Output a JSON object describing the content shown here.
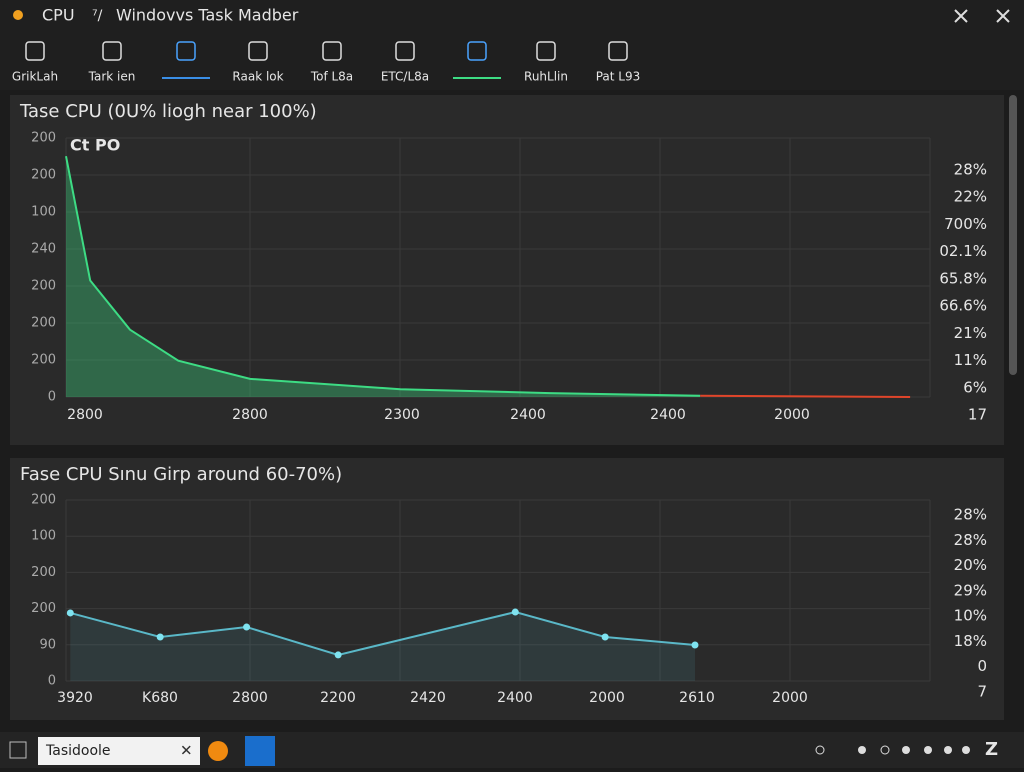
{
  "window": {
    "status": "CPU",
    "title": "Windovvs  Task Madber"
  },
  "toolbar": [
    {
      "label": "GrikLah"
    },
    {
      "label": "Tark ien"
    },
    {
      "selected": true
    },
    {
      "label": "Raak lok"
    },
    {
      "label": "Tof L8a"
    },
    {
      "label": "ETC/L8a"
    },
    {
      "selected": true
    },
    {
      "label": "RuhLlin"
    },
    {
      "label": "Pat L93"
    }
  ],
  "panels": [
    {
      "title": "Tase CPU (0U% liogh near 100%)",
      "inset_label": "Ct PO",
      "y_labels": [
        "200",
        "200",
        "100",
        "240",
        "200",
        "200",
        "200",
        "0"
      ],
      "right_labels": [
        "28%",
        "22%",
        "700%",
        "02.1%",
        "65.8%",
        "66.6%",
        "21%",
        "11%",
        "6%",
        "17"
      ],
      "x_labels": [
        "2800",
        "2800",
        "2300",
        "2400",
        "2400",
        "2000"
      ],
      "xlim": [
        0,
        100
      ],
      "ylim": [
        0,
        100
      ],
      "x": [
        0,
        2.8,
        7.4,
        13,
        21.3,
        38.7,
        56,
        73.4,
        97.7
      ],
      "series": [
        {
          "color": "#3ddc84",
          "values": [
            93,
            45,
            26,
            14,
            7,
            3,
            1.5,
            0.5,
            null
          ]
        },
        {
          "color": "#e0452a",
          "values": [
            null,
            null,
            null,
            null,
            null,
            null,
            null,
            0.5,
            0
          ]
        }
      ]
    },
    {
      "title": "Fase CPU Sınu Girp around  60-70%)",
      "y_labels": [
        "200",
        "100",
        "200",
        "200",
        "90",
        "0"
      ],
      "right_labels": [
        "28%",
        "28%",
        "20%",
        "29%",
        "10%",
        "18%",
        "0",
        "7"
      ],
      "x_labels": [
        "3920",
        "K680",
        "2800",
        "2200",
        "2420",
        "2400",
        "2000",
        "2610",
        "2000"
      ],
      "xlim": [
        0,
        100
      ],
      "ylim": [
        0,
        100
      ],
      "x": [
        0.5,
        10.9,
        20.9,
        31.5,
        52,
        62.4,
        72.8
      ],
      "series": [
        {
          "color": "#5ab8c8",
          "values": [
            37.6,
            24.3,
            29.8,
            14.4,
            38.1,
            24.3,
            19.9
          ]
        }
      ]
    }
  ],
  "taskbar": {
    "search": "Tasidoole",
    "clock": "Z"
  }
}
